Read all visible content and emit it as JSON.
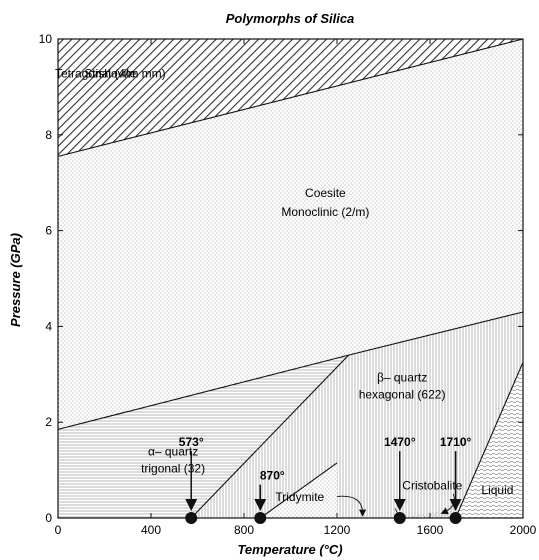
{
  "chart_data": {
    "type": "phase-diagram",
    "title": "Polymorphs of Silica",
    "xlabel": "Temperature (°C)",
    "ylabel": "Pressure (GPa)",
    "xlim": [
      0,
      2000
    ],
    "ylim": [
      0,
      10
    ],
    "xticks": [
      0,
      400,
      800,
      1200,
      1600,
      2000
    ],
    "yticks": [
      0,
      2,
      4,
      6,
      8,
      10
    ],
    "boundaries": [
      {
        "name": "stishovite-coesite",
        "points": [
          [
            0,
            7.55
          ],
          [
            2000,
            10.0
          ]
        ]
      },
      {
        "name": "coesite-quartz",
        "points": [
          [
            0,
            1.85
          ],
          [
            1250,
            3.4
          ],
          [
            2000,
            4.3
          ]
        ]
      },
      {
        "name": "alpha-beta-quartz",
        "points": [
          [
            573,
            0
          ],
          [
            1250,
            3.4
          ]
        ]
      },
      {
        "name": "quartz-tridymite",
        "points": [
          [
            870,
            0
          ],
          [
            1200,
            1.15
          ]
        ]
      },
      {
        "name": "beta-quartz-liquid",
        "points": [
          [
            1710,
            0
          ],
          [
            2000,
            3.25
          ]
        ]
      }
    ],
    "regions": [
      {
        "name": "Stishovite",
        "line1": "Stishovite",
        "line2": "Tetragonal (4/m mm)"
      },
      {
        "name": "Coesite",
        "line1": "Coesite",
        "line2": "Monoclinic (2/m)"
      },
      {
        "name": "alpha-quartz",
        "line1": "α– quartz",
        "line2": "trigonal (32)"
      },
      {
        "name": "beta-quartz",
        "line1": "β– quartz",
        "line2": "hexagonal (622)"
      },
      {
        "name": "Tridymite",
        "line1": "Tridymite"
      },
      {
        "name": "Cristobalite",
        "line1": "Cristobalite"
      },
      {
        "name": "Liquid",
        "line1": "Liquid"
      }
    ],
    "transition_points": [
      {
        "label": "573°",
        "x": 573,
        "y": 0
      },
      {
        "label": "870°",
        "x": 870,
        "y": 0
      },
      {
        "label": "1470°",
        "x": 1470,
        "y": 0
      },
      {
        "label": "1710°",
        "x": 1710,
        "y": 0
      }
    ]
  }
}
